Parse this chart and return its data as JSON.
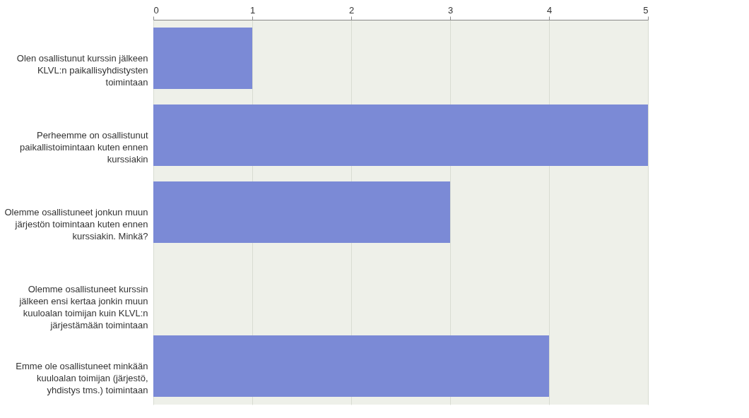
{
  "chart_data": {
    "type": "bar",
    "orientation": "horizontal",
    "categories": [
      "Olen osallistunut kurssin jälkeen KLVL:n paikallisyhdistysten toimintaan",
      "Perheemme on osallistunut paikallistoimintaan kuten ennen kurssiakin",
      "Olemme osallistuneet jonkun muun järjestön toimintaan kuten ennen kurssiakin. Minkä?",
      "Olemme osallistuneet kurssin jälkeen ensi kertaa jonkin muun kuuloalan toimijan kuin KLVL:n järjestämään toimintaan",
      "Emme ole osallistuneet minkään kuuloalan toimijan (järjestö, yhdistys tms.) toimintaan"
    ],
    "values": [
      1,
      5,
      3,
      0,
      4
    ],
    "color": "#7b8ad6",
    "xlim": [
      0,
      5
    ],
    "xticks": [
      0,
      1,
      2,
      3,
      4,
      5
    ],
    "grid": "x"
  }
}
